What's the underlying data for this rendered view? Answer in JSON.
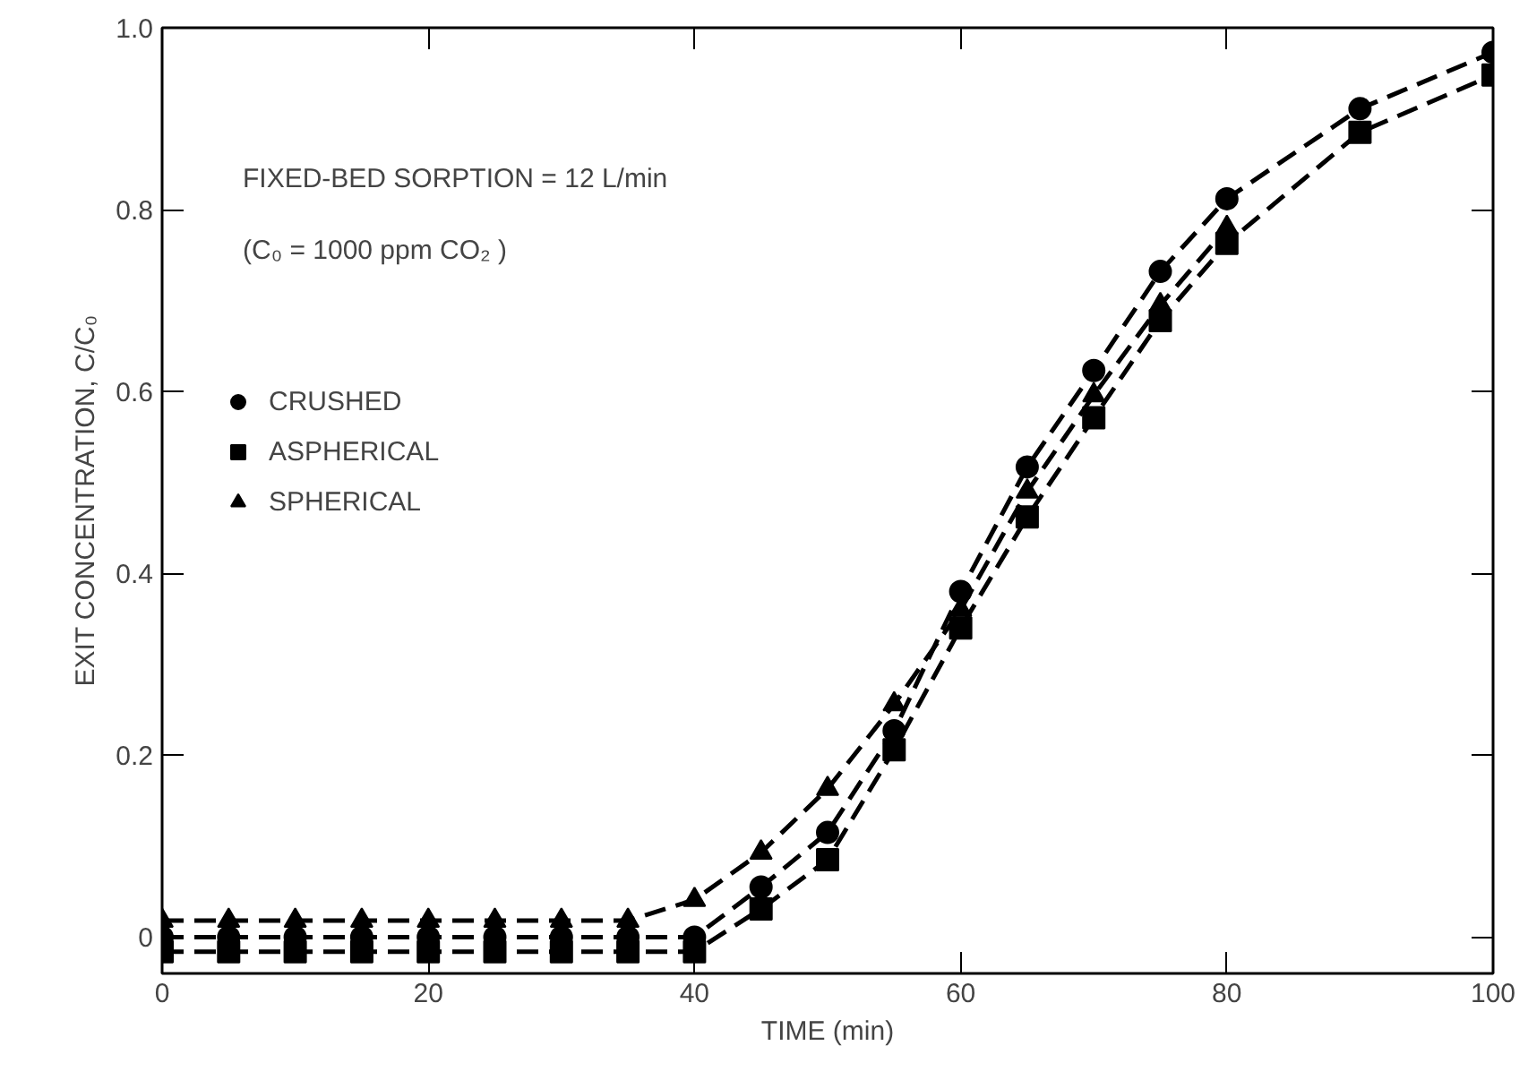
{
  "chart_data": {
    "type": "line",
    "xlabel": "TIME (min)",
    "ylabel": "EXIT CONCENTRATION, C/C₀",
    "annotations": [
      "FIXED-BED SORPTION  = 12 L/min",
      "(C₀ = 1000 ppm CO₂ )"
    ],
    "x": [
      0,
      5,
      10,
      15,
      20,
      25,
      30,
      35,
      40,
      45,
      50,
      55,
      60,
      65,
      70,
      75,
      80,
      90,
      100
    ],
    "series": [
      {
        "name": "CRUSHED",
        "color": "#000000",
        "marker": "circle",
        "values": [
          0.0,
          0.0,
          0.0,
          0.0,
          0.0,
          0.0,
          0.0,
          0.0,
          0.0,
          0.055,
          0.115,
          0.227,
          0.38,
          0.517,
          0.623,
          0.732,
          0.812,
          0.911,
          0.973
        ]
      },
      {
        "name": "ASPHERICAL",
        "color": "#000000",
        "marker": "square",
        "values": [
          -0.016,
          -0.016,
          -0.016,
          -0.016,
          -0.016,
          -0.016,
          -0.016,
          -0.016,
          -0.016,
          0.031,
          0.085,
          0.206,
          0.34,
          0.462,
          0.571,
          0.678,
          0.763,
          0.885,
          0.948
        ]
      },
      {
        "name": "SPHERICAL",
        "color": "#000000",
        "marker": "triangle",
        "values": [
          0.018,
          0.018,
          0.018,
          0.018,
          0.018,
          0.018,
          0.018,
          0.018,
          0.041,
          0.093,
          0.163,
          0.256,
          0.36,
          0.49,
          0.596,
          0.695,
          0.78,
          null,
          null
        ]
      }
    ],
    "line_style": "dashed",
    "xlim": [
      0,
      100
    ],
    "xticks": [
      0,
      20,
      40,
      60,
      80,
      100
    ],
    "ylim": [
      -0.04,
      1.0
    ],
    "yticks": [
      {
        "value": 0,
        "label": "0"
      },
      0.2,
      0.4,
      0.6,
      0.8,
      {
        "value": 1.0,
        "label": "1.0"
      }
    ],
    "grid": false,
    "legend": "top left"
  }
}
